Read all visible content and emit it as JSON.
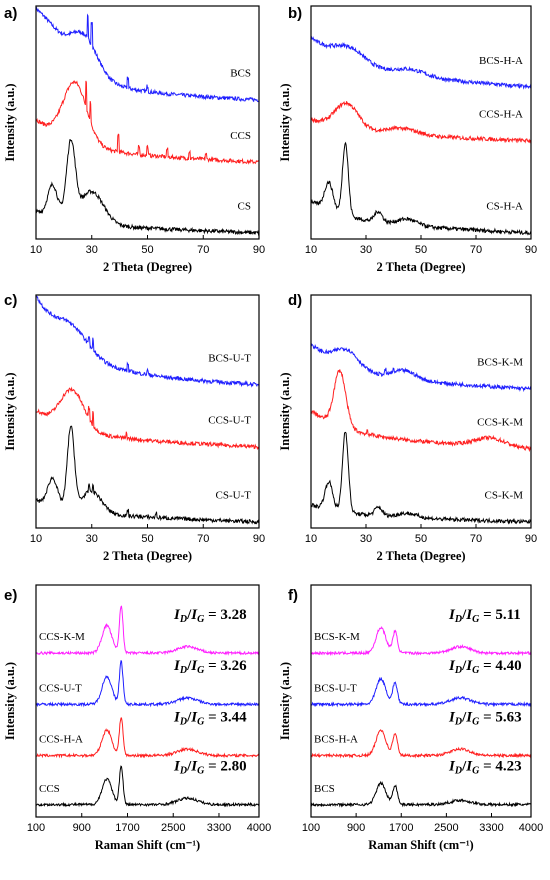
{
  "colors": {
    "black": "#000000",
    "red": "#ff2020",
    "blue": "#2020ff",
    "magenta": "#ff20ff"
  },
  "chart_data": [
    {
      "panel": "a)",
      "type": "line",
      "xlabel": "2 Theta (Degree)",
      "ylabel": "Intensity (a.u.)",
      "xlim": [
        10,
        90
      ],
      "xticks": [
        10,
        30,
        50,
        70,
        90
      ],
      "series": [
        {
          "name": "BCS",
          "color": "#2020ff",
          "offset": 0.62,
          "peaks": [
            [
              14,
              0.1,
              8
            ],
            [
              27,
              0.18,
              7
            ]
          ],
          "base": [
            0.3,
            0.05
          ],
          "sharp": [
            [
              28.6,
              0.2
            ],
            [
              30,
              0.22
            ],
            [
              43,
              0.1
            ],
            [
              50,
              0.05
            ]
          ]
        },
        {
          "name": "CCS",
          "color": "#ff2020",
          "offset": 0.33,
          "peaks": [
            [
              24,
              0.28,
              6
            ]
          ],
          "base": [
            0.15,
            0.05
          ],
          "sharp": [
            [
              28,
              0.25
            ],
            [
              29.5,
              0.18
            ],
            [
              39.5,
              0.16
            ],
            [
              47,
              0.07
            ],
            [
              50,
              0.08
            ],
            [
              57,
              0.07
            ],
            [
              65,
              0.06
            ],
            [
              71,
              0.05
            ]
          ]
        },
        {
          "name": "CS",
          "color": "#000000",
          "offset": 0.0,
          "peaks": [
            [
              16,
              0.15,
              2.5
            ],
            [
              22.5,
              0.35,
              2.2
            ],
            [
              30,
              0.15,
              6
            ]
          ],
          "base": [
            0.06,
            0.04
          ],
          "sharp": []
        }
      ]
    },
    {
      "panel": "b)",
      "type": "line",
      "xlabel": "2 Theta (Degree)",
      "ylabel": "",
      "xlim": [
        10,
        90
      ],
      "xticks": [
        10,
        30,
        50,
        70,
        90
      ],
      "series": [
        {
          "name": "BCS-H-A",
          "color": "#2020ff",
          "offset": 0.68,
          "peaks": [
            [
              24,
              0.07,
              8
            ],
            [
              46,
              0.03,
              8
            ]
          ],
          "base": [
            0.15,
            0.08
          ],
          "sharp": []
        },
        {
          "name": "CCS-H-A",
          "color": "#ff2020",
          "offset": 0.43,
          "peaks": [
            [
              23,
              0.12,
              6
            ],
            [
              43,
              0.03,
              8
            ]
          ],
          "base": [
            0.06,
            0.04
          ],
          "sharp": []
        },
        {
          "name": "CS-H-A",
          "color": "#000000",
          "offset": 0.0,
          "peaks": [
            [
              16.5,
              0.13,
              2.2
            ],
            [
              22.5,
              0.34,
              1.5
            ],
            [
              34.5,
              0.05,
              2
            ],
            [
              45,
              0.03,
              5
            ]
          ],
          "base": [
            0.1,
            0.05
          ],
          "sharp": []
        }
      ]
    },
    {
      "panel": "c)",
      "type": "line",
      "xlabel": "2 Theta (Degree)",
      "ylabel": "Intensity (a.u.)",
      "xlim": [
        10,
        90
      ],
      "xticks": [
        10,
        30,
        50,
        70,
        90
      ],
      "series": [
        {
          "name": "BCS-U-T",
          "color": "#2020ff",
          "offset": 0.64,
          "peaks": [
            [
              23,
              0.1,
              8
            ]
          ],
          "base": [
            0.35,
            0.06
          ],
          "sharp": [
            [
              29,
              0.08
            ],
            [
              30.5,
              0.1
            ],
            [
              43,
              0.06
            ],
            [
              50,
              0.04
            ]
          ]
        },
        {
          "name": "CCS-U-T",
          "color": "#ff2020",
          "offset": 0.35,
          "peaks": [
            [
              23,
              0.18,
              6
            ]
          ],
          "base": [
            0.12,
            0.05
          ],
          "sharp": [
            [
              29,
              0.1
            ],
            [
              30.5,
              0.12
            ],
            [
              42.5,
              0.06
            ]
          ]
        },
        {
          "name": "CS-U-T",
          "color": "#000000",
          "offset": 0.0,
          "peaks": [
            [
              16,
              0.13,
              2.5
            ],
            [
              22.5,
              0.38,
              1.8
            ],
            [
              30,
              0.1,
              5
            ]
          ],
          "base": [
            0.06,
            0.04
          ],
          "sharp": [
            [
              29,
              0.06
            ],
            [
              30.5,
              0.06
            ],
            [
              43,
              0.05
            ],
            [
              53,
              0.04
            ]
          ]
        }
      ]
    },
    {
      "panel": "d)",
      "type": "line",
      "xlabel": "2 Theta (Degree)",
      "ylabel": "",
      "xlim": [
        10,
        90
      ],
      "xticks": [
        10,
        30,
        50,
        70,
        90
      ],
      "series": [
        {
          "name": "BCS-K-M",
          "color": "#2020ff",
          "offset": 0.62,
          "peaks": [
            [
              23,
              0.08,
              6
            ],
            [
              44,
              0.04,
              6
            ]
          ],
          "base": [
            0.15,
            0.06
          ],
          "sharp": [
            [
              37,
              0.04
            ],
            [
              40,
              0.03
            ]
          ]
        },
        {
          "name": "CCS-K-M",
          "color": "#ff2020",
          "offset": 0.34,
          "peaks": [
            [
              20.5,
              0.26,
              3
            ],
            [
              75,
              0.04,
              8
            ]
          ],
          "base": [
            0.12,
            0.06
          ],
          "sharp": [
            [
              30.5,
              0.04
            ]
          ]
        },
        {
          "name": "CS-K-M",
          "color": "#000000",
          "offset": 0.0,
          "peaks": [
            [
              16.5,
              0.13,
              2
            ],
            [
              22.5,
              0.38,
              1.5
            ],
            [
              34.5,
              0.04,
              2
            ],
            [
              45,
              0.02,
              5
            ]
          ],
          "base": [
            0.05,
            0.03
          ],
          "sharp": []
        }
      ]
    },
    {
      "panel": "e)",
      "type": "line",
      "xlabel": "Raman Shift (cm⁻¹)",
      "ylabel": "Intensity (a.u.)",
      "xlim": [
        100,
        4000
      ],
      "xticks": [
        100,
        900,
        1700,
        2500,
        3300,
        4000
      ],
      "series": [
        {
          "name": "CCS-K-M",
          "color": "#ff20ff",
          "offset": 0.74,
          "ratio": "3.28",
          "peaks": [
            [
              1340,
              0.13,
              120
            ],
            [
              1590,
              0.22,
              45
            ],
            [
              2750,
              0.03,
              250
            ]
          ],
          "base": [
            0,
            0
          ],
          "sharp": []
        },
        {
          "name": "CCS-U-T",
          "color": "#2020ff",
          "offset": 0.5,
          "ratio": "3.26",
          "peaks": [
            [
              1340,
              0.13,
              120
            ],
            [
              1590,
              0.2,
              45
            ],
            [
              2750,
              0.03,
              250
            ]
          ],
          "base": [
            0,
            0
          ],
          "sharp": []
        },
        {
          "name": "CCS-H-A",
          "color": "#ff2020",
          "offset": 0.26,
          "ratio": "3.44",
          "peaks": [
            [
              1340,
              0.12,
              120
            ],
            [
              1590,
              0.18,
              45
            ],
            [
              2750,
              0.03,
              250
            ]
          ],
          "base": [
            0,
            0
          ],
          "sharp": []
        },
        {
          "name": "CCS",
          "color": "#000000",
          "offset": 0.03,
          "ratio": "2.80",
          "peaks": [
            [
              1340,
              0.12,
              120
            ],
            [
              1590,
              0.18,
              45
            ],
            [
              2750,
              0.03,
              250
            ]
          ],
          "base": [
            0,
            0
          ],
          "sharp": []
        }
      ]
    },
    {
      "panel": "f)",
      "type": "line",
      "xlabel": "Raman Shift (cm⁻¹)",
      "ylabel": "Intensity (a.u.)",
      "xlim": [
        100,
        4000
      ],
      "xticks": [
        100,
        900,
        1700,
        2500,
        3300,
        4000
      ],
      "series": [
        {
          "name": "BCS-K-M",
          "color": "#ff20ff",
          "offset": 0.74,
          "ratio": "5.11",
          "peaks": [
            [
              1340,
              0.12,
              120
            ],
            [
              1590,
              0.1,
              60
            ],
            [
              2750,
              0.03,
              250
            ]
          ],
          "base": [
            0,
            0
          ],
          "sharp": []
        },
        {
          "name": "BCS-U-T",
          "color": "#2020ff",
          "offset": 0.5,
          "ratio": "4.40",
          "peaks": [
            [
              1340,
              0.12,
              120
            ],
            [
              1590,
              0.1,
              60
            ],
            [
              2750,
              0.03,
              250
            ]
          ],
          "base": [
            0,
            0
          ],
          "sharp": []
        },
        {
          "name": "BCS-H-A",
          "color": "#ff2020",
          "offset": 0.26,
          "ratio": "5.63",
          "peaks": [
            [
              1340,
              0.12,
              120
            ],
            [
              1590,
              0.1,
              60
            ],
            [
              2750,
              0.03,
              250
            ]
          ],
          "base": [
            0,
            0
          ],
          "sharp": []
        },
        {
          "name": "BCS",
          "color": "#000000",
          "offset": 0.03,
          "ratio": "4.23",
          "peaks": [
            [
              1340,
              0.1,
              120
            ],
            [
              1590,
              0.09,
              60
            ],
            [
              2750,
              0.02,
              250
            ]
          ],
          "base": [
            0,
            0
          ],
          "sharp": []
        }
      ]
    }
  ]
}
